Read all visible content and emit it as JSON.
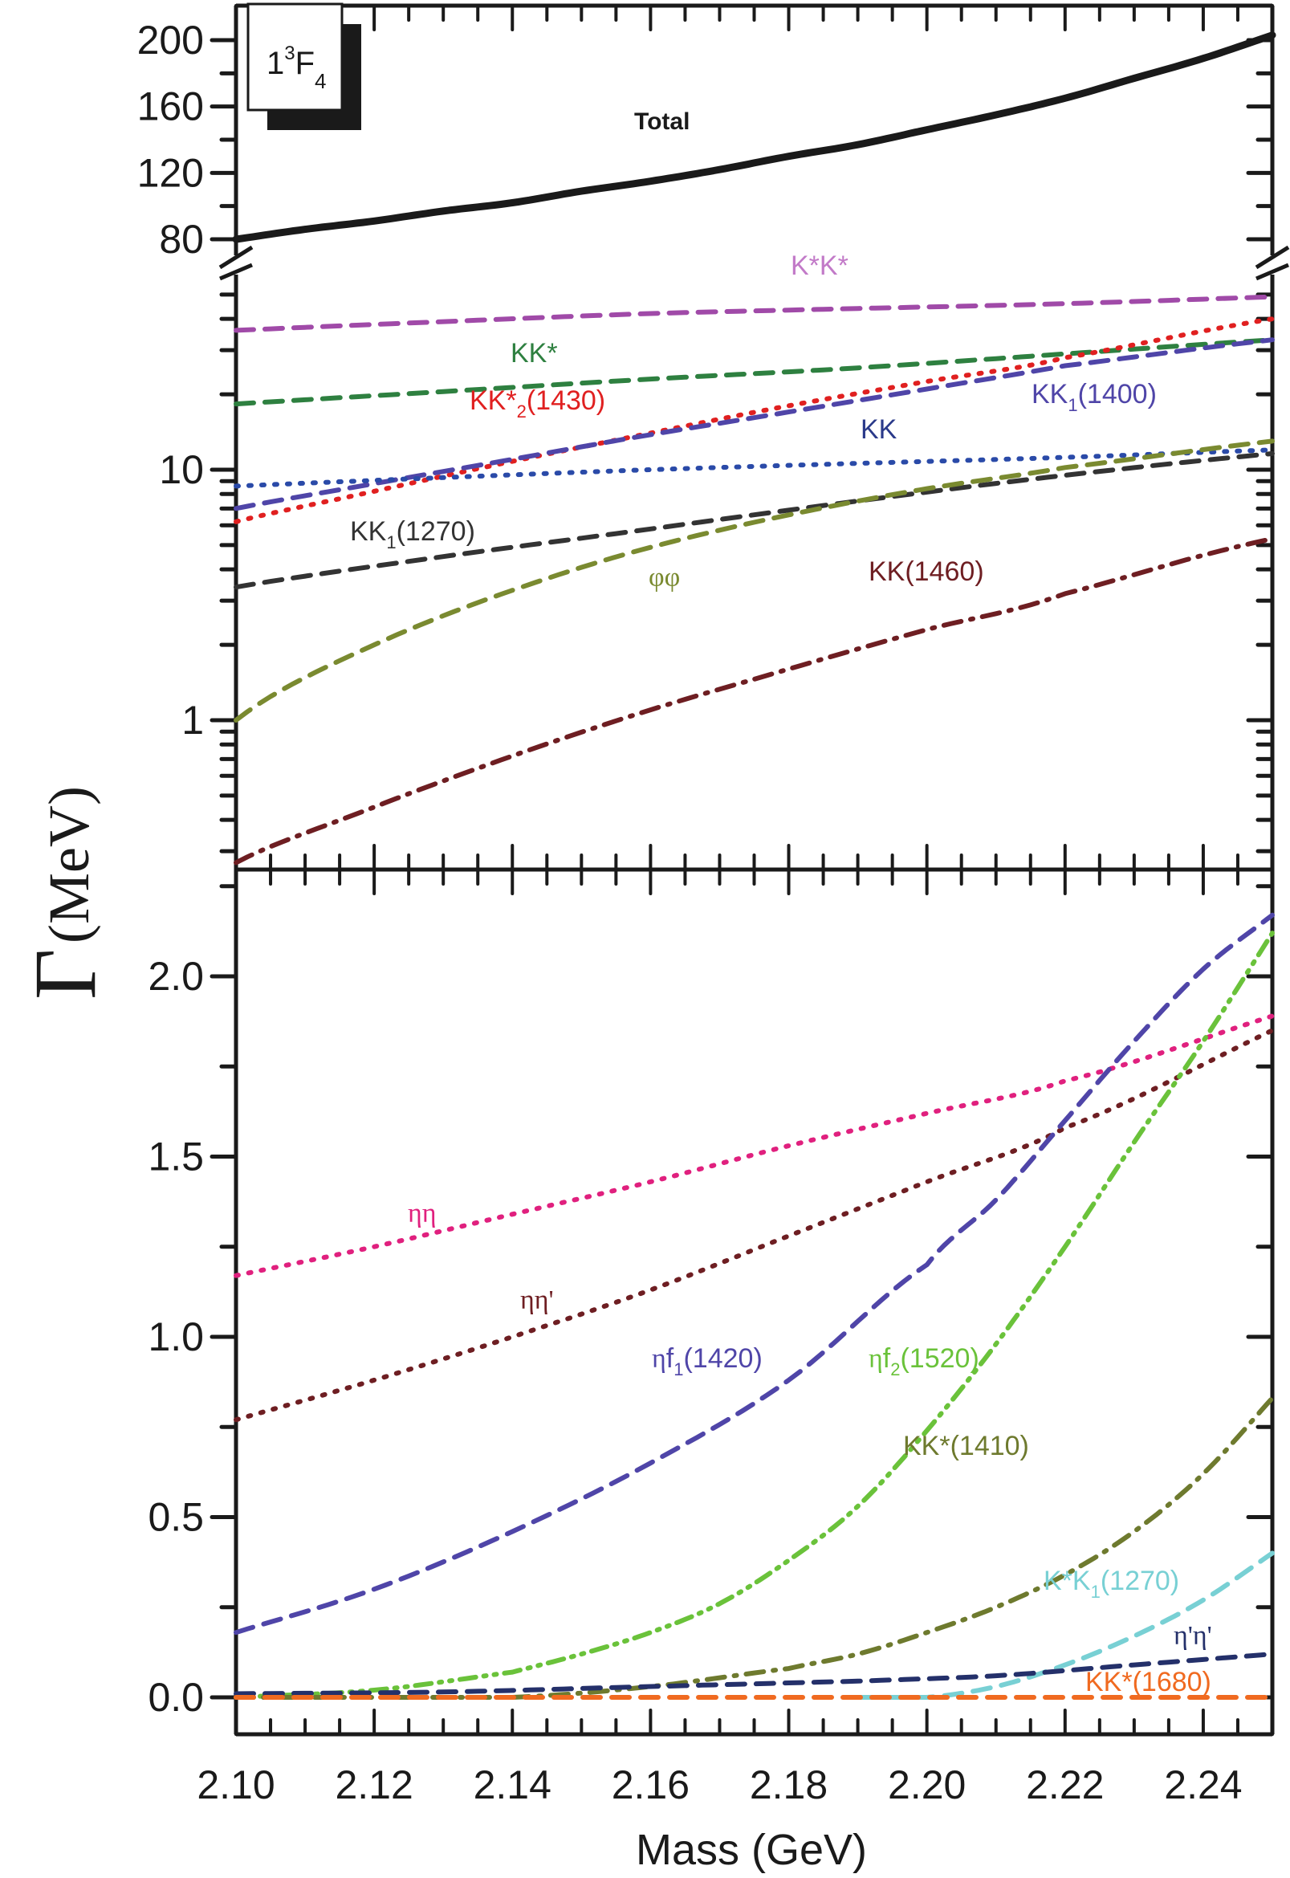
{
  "chart_data": [
    {
      "panel": "upper",
      "type": "line",
      "state_label": {
        "main": "1",
        "sup": "3",
        "letter": "F",
        "sub": "4"
      },
      "xlabel": "Mass (GeV)",
      "ylabel": {
        "symbol": "Γ",
        "unit": "(MeV)"
      },
      "xlim": [
        2.1,
        2.25
      ],
      "x_ticks": [
        2.1,
        2.12,
        2.14,
        2.16,
        2.18,
        2.2,
        2.22,
        2.24
      ],
      "y_axis": {
        "scale": "broken",
        "upper_segment": {
          "scale": "linear",
          "ylim": [
            72,
            220
          ],
          "ticks": [
            80,
            120,
            160,
            200
          ],
          "tick_labels": [
            "80",
            "120",
            "160",
            "200"
          ]
        },
        "lower_segment": {
          "scale": "log",
          "ylim": [
            0.25,
            70
          ],
          "ticks": [
            1,
            10
          ],
          "tick_labels": [
            "1",
            "10"
          ]
        }
      },
      "series": [
        {
          "name": "Total",
          "label": "Total",
          "color": "#1a1a1a",
          "style": "solid",
          "segment": "upper",
          "x": [
            2.1,
            2.11,
            2.12,
            2.13,
            2.14,
            2.15,
            2.16,
            2.17,
            2.18,
            2.19,
            2.2,
            2.21,
            2.22,
            2.23,
            2.24,
            2.25
          ],
          "y": [
            80,
            86,
            91,
            97,
            102,
            109,
            115,
            122,
            130,
            137,
            146,
            155,
            165,
            177,
            189,
            203
          ]
        },
        {
          "name": "K*K*",
          "label": "K*K*",
          "color": "#a04aa8",
          "style": "dashed",
          "segment": "lower",
          "x": [
            2.1,
            2.13,
            2.16,
            2.19,
            2.22,
            2.25
          ],
          "y": [
            36,
            39,
            42,
            44,
            46,
            49
          ]
        },
        {
          "name": "KK*",
          "label": "KK*",
          "color": "#2e8040",
          "style": "dashed",
          "segment": "lower",
          "x": [
            2.1,
            2.13,
            2.16,
            2.19,
            2.22,
            2.25
          ],
          "y": [
            18.3,
            20.5,
            23,
            25.5,
            29,
            33
          ]
        },
        {
          "name": "KK*2(1430)",
          "label": "KK*₂(1430)",
          "color": "#e02020",
          "style": "dotted",
          "segment": "lower",
          "x": [
            2.1,
            2.12,
            2.14,
            2.16,
            2.18,
            2.2,
            2.22,
            2.25
          ],
          "y": [
            6.2,
            8.2,
            10.8,
            14,
            18,
            22.5,
            28,
            40
          ]
        },
        {
          "name": "KK1(1400)",
          "label": "KK₁(1400)",
          "color": "#4f45a8",
          "style": "dashed",
          "segment": "lower",
          "x": [
            2.1,
            2.12,
            2.14,
            2.16,
            2.18,
            2.2,
            2.22,
            2.25
          ],
          "y": [
            7.0,
            8.8,
            11,
            13.8,
            17,
            21,
            26,
            33
          ]
        },
        {
          "name": "KK",
          "label": "KK",
          "color": "#2a4aa8",
          "style": "dotted",
          "segment": "lower",
          "x": [
            2.1,
            2.13,
            2.16,
            2.19,
            2.22,
            2.25
          ],
          "y": [
            8.6,
            9.3,
            10,
            10.6,
            11.2,
            12
          ]
        },
        {
          "name": "KK1(1270)",
          "label": "KK₁(1270)",
          "color": "#333333",
          "style": "dashed",
          "segment": "lower",
          "x": [
            2.1,
            2.13,
            2.16,
            2.19,
            2.22,
            2.25
          ],
          "y": [
            3.4,
            4.5,
            5.8,
            7.5,
            9.5,
            11.6
          ]
        },
        {
          "name": "phiphi",
          "label": "φφ",
          "color": "#7a8a30",
          "style": "dashed",
          "segment": "lower",
          "x": [
            2.1,
            2.12,
            2.14,
            2.16,
            2.18,
            2.2,
            2.22,
            2.25
          ],
          "y": [
            1.0,
            2.0,
            3.3,
            4.9,
            6.6,
            8.4,
            10.2,
            13
          ]
        },
        {
          "name": "KK(1460)",
          "label": "KK(1460)",
          "color": "#6e1e22",
          "style": "dashdot",
          "segment": "lower",
          "x": [
            2.1,
            2.12,
            2.14,
            2.16,
            2.18,
            2.2,
            2.22,
            2.25
          ],
          "y": [
            0.27,
            0.45,
            0.72,
            1.1,
            1.6,
            2.3,
            3.2,
            5.3
          ]
        }
      ]
    },
    {
      "panel": "lower",
      "type": "line",
      "xlabel": "Mass (GeV)",
      "xlim": [
        2.1,
        2.25
      ],
      "ylim": [
        -0.1,
        2.25
      ],
      "x_ticks": [
        2.1,
        2.12,
        2.14,
        2.16,
        2.18,
        2.2,
        2.22,
        2.24
      ],
      "x_tick_labels": [
        "2.10",
        "2.12",
        "2.14",
        "2.16",
        "2.18",
        "2.20",
        "2.22",
        "2.24"
      ],
      "y_ticks": [
        0.0,
        0.5,
        1.0,
        1.5,
        2.0
      ],
      "y_tick_labels": [
        "0.0",
        "0.5",
        "1.0",
        "1.5",
        "2.0"
      ],
      "series": [
        {
          "name": "etaeta",
          "label": "ηη",
          "color": "#e0207e",
          "style": "dotted",
          "x": [
            2.1,
            2.12,
            2.14,
            2.16,
            2.18,
            2.2,
            2.22,
            2.25
          ],
          "y": [
            1.17,
            1.25,
            1.34,
            1.43,
            1.53,
            1.62,
            1.71,
            1.89
          ]
        },
        {
          "name": "etaetaprime",
          "label": "ηη'",
          "color": "#6e1e22",
          "style": "dotted",
          "x": [
            2.1,
            2.12,
            2.14,
            2.16,
            2.18,
            2.2,
            2.22,
            2.25
          ],
          "y": [
            0.77,
            0.88,
            1.0,
            1.13,
            1.28,
            1.43,
            1.58,
            1.85
          ]
        },
        {
          "name": "etaf1(1420)",
          "label": "ηf₁(1420)",
          "color": "#4f45a8",
          "style": "dashed",
          "x": [
            2.1,
            2.12,
            2.14,
            2.16,
            2.18,
            2.2,
            2.21,
            2.22,
            2.23,
            2.24,
            2.25
          ],
          "y": [
            0.18,
            0.3,
            0.46,
            0.65,
            0.88,
            1.2,
            1.38,
            1.6,
            1.82,
            2.02,
            2.17
          ]
        },
        {
          "name": "etaf2(1520)",
          "label": "ηf₂(1520)",
          "color": "#6ac23a",
          "style": "dashdotdot",
          "x": [
            2.1,
            2.12,
            2.14,
            2.15,
            2.16,
            2.17,
            2.18,
            2.19,
            2.2,
            2.21,
            2.22,
            2.23,
            2.24,
            2.25
          ],
          "y": [
            0.0,
            0.02,
            0.07,
            0.12,
            0.18,
            0.26,
            0.38,
            0.53,
            0.74,
            0.98,
            1.25,
            1.54,
            1.82,
            2.12
          ]
        },
        {
          "name": "KK*(1410)",
          "label": "KK*(1410)",
          "color": "#6e7a2e",
          "style": "dashdot",
          "x": [
            2.1,
            2.14,
            2.16,
            2.18,
            2.19,
            2.2,
            2.21,
            2.22,
            2.23,
            2.24,
            2.25
          ],
          "y": [
            0.0,
            0.0,
            0.03,
            0.08,
            0.12,
            0.18,
            0.25,
            0.34,
            0.46,
            0.62,
            0.83
          ]
        },
        {
          "name": "K*K1(1270)",
          "label": "K*K₁(1270)",
          "color": "#78d0d4",
          "style": "dashed",
          "x": [
            2.19,
            2.2,
            2.21,
            2.22,
            2.23,
            2.24,
            2.25
          ],
          "y": [
            0.0,
            0.0,
            0.03,
            0.09,
            0.17,
            0.27,
            0.4
          ]
        },
        {
          "name": "etaprimeetaprime",
          "label": "η'η'",
          "color": "#24306a",
          "style": "dashed",
          "x": [
            2.1,
            2.13,
            2.16,
            2.19,
            2.21,
            2.23,
            2.25
          ],
          "y": [
            0.01,
            0.015,
            0.03,
            0.045,
            0.06,
            0.09,
            0.12
          ]
        },
        {
          "name": "KK*(1680)",
          "label": "KK*(1680)",
          "color": "#f06a20",
          "style": "dashed",
          "x": [
            2.1,
            2.25
          ],
          "y": [
            0.0,
            0.0
          ]
        }
      ]
    }
  ]
}
